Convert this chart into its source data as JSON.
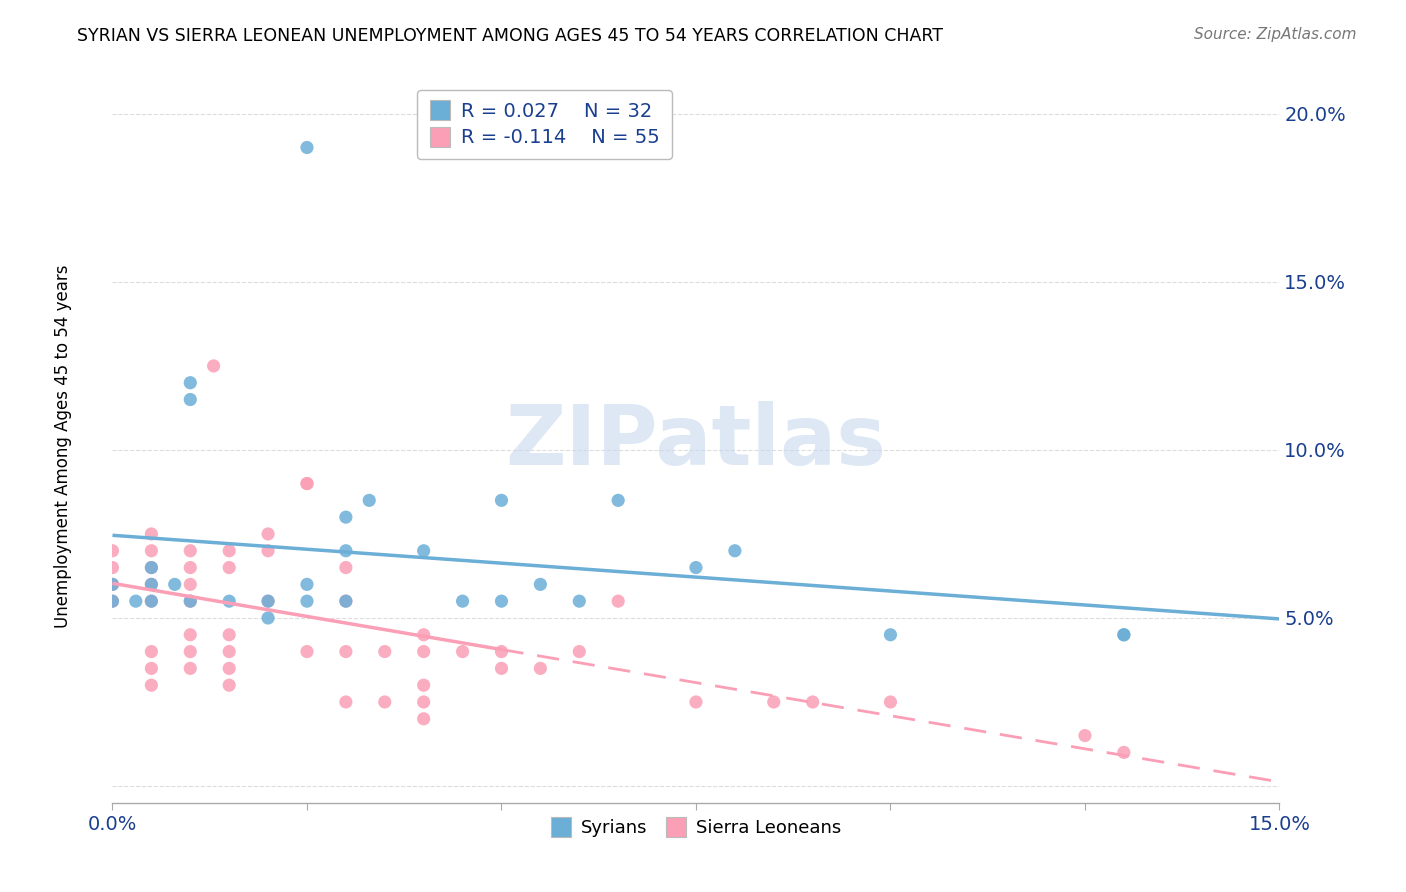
{
  "title": "SYRIAN VS SIERRA LEONEAN UNEMPLOYMENT AMONG AGES 45 TO 54 YEARS CORRELATION CHART",
  "source": "Source: ZipAtlas.com",
  "ylabel": "Unemployment Among Ages 45 to 54 years",
  "xlim": [
    0.0,
    0.15
  ],
  "ylim": [
    -0.005,
    0.21
  ],
  "xtick_vals": [
    0.0,
    0.025,
    0.05,
    0.075,
    0.1,
    0.125,
    0.15
  ],
  "ytick_vals": [
    0.0,
    0.05,
    0.1,
    0.15,
    0.2
  ],
  "ytick_labels": [
    "",
    "5.0%",
    "10.0%",
    "15.0%",
    "20.0%"
  ],
  "xtick_labels": [
    "0.0%",
    "",
    "",
    "",
    "",
    "",
    "15.0%"
  ],
  "syrian_color": "#6baed6",
  "sierra_color": "#fa9fb5",
  "syrian_R": "0.027",
  "syrian_N": "32",
  "sierra_R": "-0.114",
  "sierra_N": "55",
  "legend_text_color": "#1a3f8f",
  "watermark_text": "ZIPatlas",
  "watermark_color": "#c8d8ee",
  "syrian_scatter_x": [
    0.0,
    0.0,
    0.003,
    0.005,
    0.005,
    0.005,
    0.008,
    0.01,
    0.01,
    0.01,
    0.015,
    0.02,
    0.02,
    0.025,
    0.025,
    0.025,
    0.03,
    0.03,
    0.03,
    0.033,
    0.04,
    0.045,
    0.05,
    0.05,
    0.055,
    0.06,
    0.065,
    0.075,
    0.08,
    0.1,
    0.13,
    0.13
  ],
  "syrian_scatter_y": [
    0.055,
    0.06,
    0.055,
    0.06,
    0.065,
    0.055,
    0.06,
    0.115,
    0.12,
    0.055,
    0.055,
    0.055,
    0.05,
    0.19,
    0.055,
    0.06,
    0.08,
    0.055,
    0.07,
    0.085,
    0.07,
    0.055,
    0.085,
    0.055,
    0.06,
    0.055,
    0.085,
    0.065,
    0.07,
    0.045,
    0.045,
    0.045
  ],
  "sierra_scatter_x": [
    0.0,
    0.0,
    0.0,
    0.0,
    0.005,
    0.005,
    0.005,
    0.005,
    0.005,
    0.005,
    0.005,
    0.005,
    0.01,
    0.01,
    0.01,
    0.01,
    0.01,
    0.01,
    0.01,
    0.013,
    0.015,
    0.015,
    0.015,
    0.015,
    0.015,
    0.015,
    0.02,
    0.02,
    0.02,
    0.025,
    0.025,
    0.025,
    0.03,
    0.03,
    0.03,
    0.03,
    0.035,
    0.035,
    0.04,
    0.04,
    0.04,
    0.04,
    0.04,
    0.045,
    0.05,
    0.05,
    0.055,
    0.06,
    0.065,
    0.075,
    0.085,
    0.09,
    0.1,
    0.125,
    0.13
  ],
  "sierra_scatter_y": [
    0.055,
    0.06,
    0.065,
    0.07,
    0.055,
    0.06,
    0.065,
    0.07,
    0.075,
    0.04,
    0.035,
    0.03,
    0.06,
    0.065,
    0.07,
    0.045,
    0.04,
    0.035,
    0.055,
    0.125,
    0.065,
    0.07,
    0.045,
    0.04,
    0.035,
    0.03,
    0.07,
    0.075,
    0.055,
    0.09,
    0.09,
    0.04,
    0.065,
    0.055,
    0.04,
    0.025,
    0.04,
    0.025,
    0.04,
    0.045,
    0.03,
    0.025,
    0.02,
    0.04,
    0.04,
    0.035,
    0.035,
    0.04,
    0.055,
    0.025,
    0.025,
    0.025,
    0.025,
    0.015,
    0.01
  ],
  "background_color": "#ffffff",
  "grid_color": "#dddddd",
  "spine_color": "#aaaaaa"
}
